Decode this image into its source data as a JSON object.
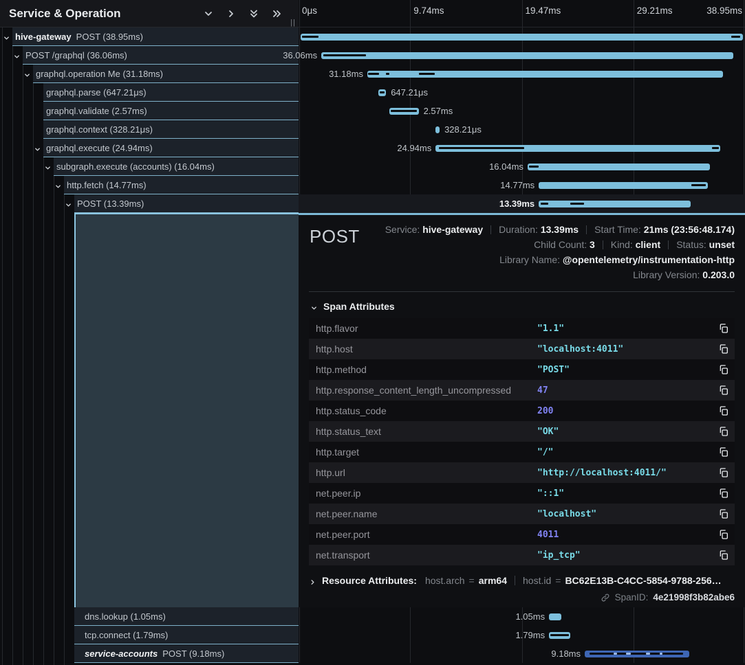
{
  "header": {
    "title": "Service & Operation",
    "icons": [
      "chevron-down-icon",
      "chevron-right-icon",
      "double-chevron-down-icon",
      "double-chevron-right-icon"
    ],
    "drag_handle": "||"
  },
  "ruler": {
    "ticks": [
      "0μs",
      "9.74ms",
      "19.47ms",
      "29.21ms",
      "38.95ms"
    ]
  },
  "colors": {
    "bar_default": "#7dbfdc",
    "bar_service_accounts": "#3e66b4",
    "mark_dark": "#0c0d0f",
    "mark_light": "#9db9e4",
    "row_underline": "#7fb2ca",
    "selection": "#8cc6e2"
  },
  "rows_top": [
    {
      "indent": 18,
      "toggle": "down",
      "service": "hive-gateway",
      "label": "POST (38.95ms)",
      "bar": [
        0.5,
        99.0
      ],
      "marks": [
        [
          0.8,
          3.6
        ],
        [
          96.9,
          2.0
        ]
      ],
      "durLabel": "",
      "labelSide": null
    },
    {
      "indent": 33,
      "toggle": "down",
      "label": "POST /graphql (36.06ms)",
      "bar": [
        5.1,
        92.3
      ],
      "marks": [
        [
          5.6,
          9.5
        ]
      ],
      "durLabel": "36.06ms",
      "labelSide": "left"
    },
    {
      "indent": 48,
      "toggle": "down",
      "label": "graphql.operation Me (31.18ms)",
      "bar": [
        15.4,
        79.6
      ],
      "marks": [
        [
          15.6,
          2.4
        ],
        [
          19.6,
          0.7
        ],
        [
          26.9,
          3.6
        ]
      ],
      "durLabel": "31.18ms",
      "labelSide": "left"
    },
    {
      "indent": 63,
      "label": "graphql.parse (647.21μs)",
      "bar": [
        17.9,
        1.7
      ],
      "marks": [
        [
          18.2,
          1.1
        ]
      ],
      "durLabel": "647.21μs",
      "labelSide": "right"
    },
    {
      "indent": 63,
      "label": "graphql.validate (2.57ms)",
      "bar": [
        20.3,
        6.6
      ],
      "marks": [
        [
          20.7,
          5.8
        ]
      ],
      "durLabel": "2.57ms",
      "labelSide": "right"
    },
    {
      "indent": 63,
      "label": "graphql.context (328.21μs)",
      "bar": [
        30.7,
        0.9
      ],
      "marks": [],
      "durLabel": "328.21μs",
      "labelSide": "right"
    },
    {
      "indent": 63,
      "toggle": "down",
      "label": "graphql.execute (24.94ms)",
      "bar": [
        30.7,
        63.7
      ],
      "marks": [
        [
          31.4,
          19.2
        ],
        [
          92.6,
          1.6
        ]
      ],
      "durLabel": "24.94ms",
      "labelSide": "left"
    },
    {
      "indent": 78,
      "toggle": "down",
      "label": "subgraph.execute (accounts) (16.04ms)",
      "bar": [
        51.3,
        40.9
      ],
      "marks": [
        [
          51.6,
          2.2
        ]
      ],
      "durLabel": "16.04ms",
      "labelSide": "left"
    },
    {
      "indent": 93,
      "toggle": "down",
      "label": "http.fetch (14.77ms)",
      "bar": [
        53.8,
        37.9
      ],
      "marks": [
        [
          88.0,
          3.2
        ]
      ],
      "durLabel": "14.77ms",
      "labelSide": "left"
    },
    {
      "indent": 108,
      "toggle": "down",
      "label": "POST (13.39ms)",
      "bar": [
        53.8,
        34.1
      ],
      "marks": [
        [
          54.3,
          1.7
        ],
        [
          60.8,
          3.2
        ]
      ],
      "durLabel": "13.39ms",
      "labelSide": "left",
      "selected": true
    }
  ],
  "rows_bottom": [
    {
      "indent": 108,
      "pad": 15,
      "label": "dns.lookup (1.05ms)",
      "bar": [
        56.1,
        2.7
      ],
      "marks": [],
      "durLabel": "1.05ms",
      "labelSide": "left"
    },
    {
      "indent": 108,
      "pad": 15,
      "label": "tcp.connect (1.79ms)",
      "bar": [
        56.1,
        4.7
      ],
      "marks": [
        [
          56.4,
          4.1
        ]
      ],
      "durLabel": "1.79ms",
      "labelSide": "left"
    },
    {
      "indent": 108,
      "pad": 15,
      "toggle": "right",
      "chevInside": true,
      "service": "service-accounts",
      "serviceItalic": true,
      "label": "POST (9.18ms)",
      "bar": [
        64.1,
        23.4
      ],
      "color": "#3e66b4",
      "marks": [
        [
          65.2,
          20.9
        ]
      ],
      "lightMarks": [
        [
          70.5,
          0.8
        ],
        [
          73.3,
          1.2
        ],
        [
          77.8,
          1.0
        ],
        [
          80.9,
          0.6
        ]
      ],
      "durLabel": "9.18ms",
      "labelSide": "left"
    }
  ],
  "detail": {
    "title": "POST",
    "meta_lines": [
      [
        {
          "label": "Service:",
          "value": "hive-gateway"
        },
        {
          "label": "Duration:",
          "value": "13.39ms"
        },
        {
          "label": "Start Time:",
          "value": "21ms (23:56:48.174)"
        }
      ],
      [
        {
          "label": "Child Count:",
          "value": "3"
        },
        {
          "label": "Kind:",
          "value": "client"
        },
        {
          "label": "Status:",
          "value": "unset"
        }
      ],
      [
        {
          "label": "Library Name:",
          "value": "@opentelemetry/instrumentation-http"
        }
      ],
      [
        {
          "label": "Library Version:",
          "value": "0.203.0"
        }
      ]
    ],
    "span_attributes_title": "Span Attributes",
    "span_attributes": [
      {
        "key": "http.flavor",
        "value": "\"1.1\"",
        "type": "str"
      },
      {
        "key": "http.host",
        "value": "\"localhost:4011\"",
        "type": "str"
      },
      {
        "key": "http.method",
        "value": "\"POST\"",
        "type": "str"
      },
      {
        "key": "http.response_content_length_uncompressed",
        "value": "47",
        "type": "num"
      },
      {
        "key": "http.status_code",
        "value": "200",
        "type": "num"
      },
      {
        "key": "http.status_text",
        "value": "\"OK\"",
        "type": "str"
      },
      {
        "key": "http.target",
        "value": "\"/\"",
        "type": "str"
      },
      {
        "key": "http.url",
        "value": "\"http://localhost:4011/\"",
        "type": "str"
      },
      {
        "key": "net.peer.ip",
        "value": "\"::1\"",
        "type": "str"
      },
      {
        "key": "net.peer.name",
        "value": "\"localhost\"",
        "type": "str"
      },
      {
        "key": "net.peer.port",
        "value": "4011",
        "type": "num"
      },
      {
        "key": "net.transport",
        "value": "\"ip_tcp\"",
        "type": "str"
      }
    ],
    "resource_attributes_title": "Resource Attributes:",
    "resource_attributes": [
      {
        "key": "host.arch",
        "value": "arm64"
      },
      {
        "key": "host.id",
        "value": "BC62E13B-C4CC-5854-9788-256…"
      }
    ],
    "span_id_label": "SpanID:",
    "span_id": "4e21998f3b82abe6"
  }
}
